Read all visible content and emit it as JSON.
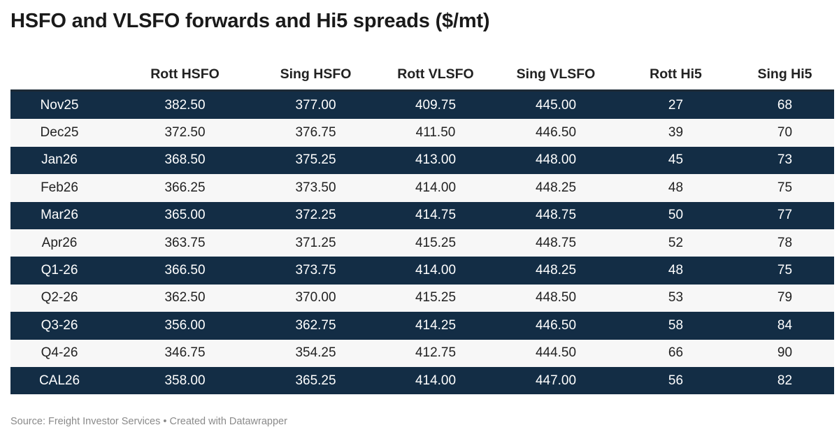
{
  "title": "HSFO and VLSFO forwards and Hi5 spreads ($/mt)",
  "footer": "Source: Freight Investor Services • Created with Datawrapper",
  "colors": {
    "dark_row": "#132d45",
    "light_row": "#f7f7f7"
  },
  "chart_data": {
    "type": "table",
    "title": "HSFO and VLSFO forwards and Hi5 spreads ($/mt)",
    "columns": [
      "",
      "Rott HSFO",
      "Sing HSFO",
      "Rott VLSFO",
      "Sing VLSFO",
      "Rott Hi5",
      "Sing Hi5"
    ],
    "rows": [
      [
        "Nov25",
        "382.50",
        "377.00",
        "409.75",
        "445.00",
        "27",
        "68"
      ],
      [
        "Dec25",
        "372.50",
        "376.75",
        "411.50",
        "446.50",
        "39",
        "70"
      ],
      [
        "Jan26",
        "368.50",
        "375.25",
        "413.00",
        "448.00",
        "45",
        "73"
      ],
      [
        "Feb26",
        "366.25",
        "373.50",
        "414.00",
        "448.25",
        "48",
        "75"
      ],
      [
        "Mar26",
        "365.00",
        "372.25",
        "414.75",
        "448.75",
        "50",
        "77"
      ],
      [
        "Apr26",
        "363.75",
        "371.25",
        "415.25",
        "448.75",
        "52",
        "78"
      ],
      [
        "Q1-26",
        "366.50",
        "373.75",
        "414.00",
        "448.25",
        "48",
        "75"
      ],
      [
        "Q2-26",
        "362.50",
        "370.00",
        "415.25",
        "448.50",
        "53",
        "79"
      ],
      [
        "Q3-26",
        "356.00",
        "362.75",
        "414.25",
        "446.50",
        "58",
        "84"
      ],
      [
        "Q4-26",
        "346.75",
        "354.25",
        "412.75",
        "444.50",
        "66",
        "90"
      ],
      [
        "CAL26",
        "358.00",
        "365.25",
        "414.00",
        "447.00",
        "56",
        "82"
      ]
    ]
  }
}
